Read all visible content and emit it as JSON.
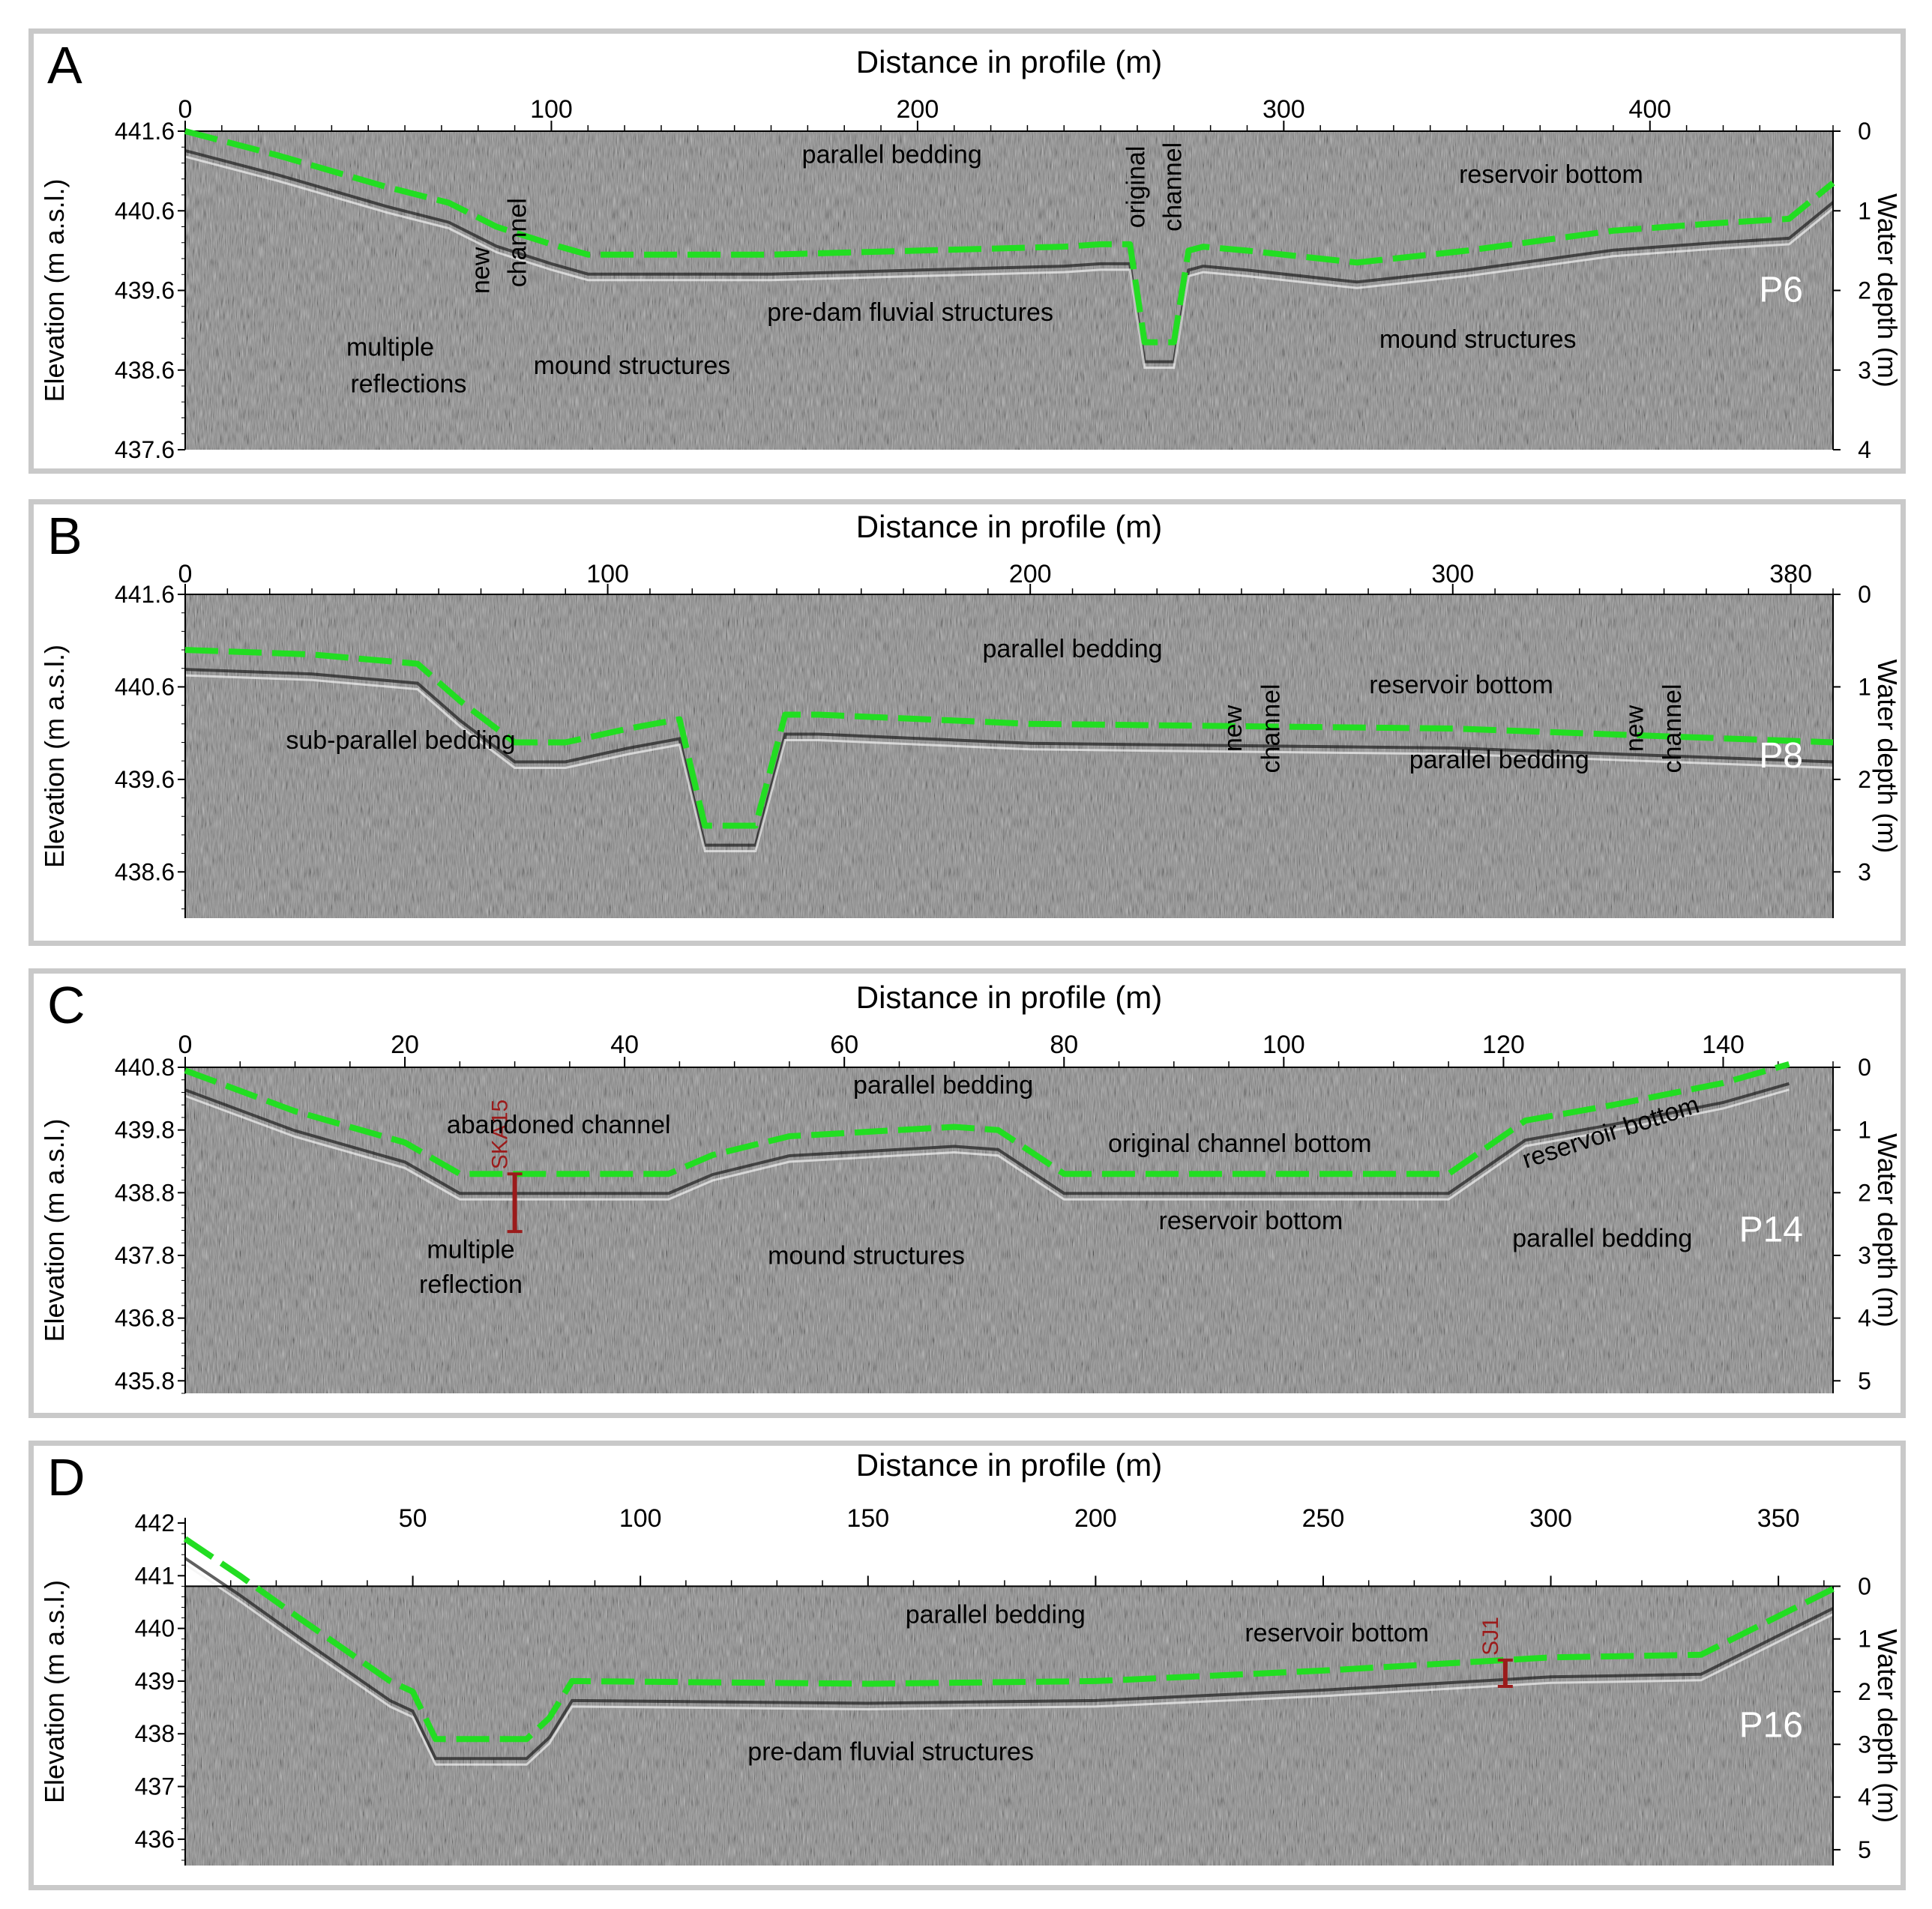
{
  "chart_data": [
    {
      "type": "line",
      "panel_letter": "A",
      "profile_label": "P6",
      "top_axis_title": "Distance in profile (m)",
      "left_axis_title": "Elevation (m a.s.l.)",
      "right_axis_title": "Water depth (m)",
      "xlim": [
        0,
        450
      ],
      "ylim": [
        437.6,
        441.6
      ],
      "x_ticks": [
        0,
        100,
        200,
        300,
        400
      ],
      "y_ticks": [
        "441.6",
        "440.6",
        "439.6",
        "438.6",
        "437.6"
      ],
      "depth_ticks": [
        "0",
        "1",
        "2",
        "3",
        "4"
      ],
      "water_surface": 441.6,
      "grid": false,
      "series": [
        {
          "color": "#22dd22",
          "style": "dashed",
          "x": [
            0,
            25,
            55,
            72,
            85,
            100,
            110,
            130,
            160,
            200,
            240,
            250,
            258,
            262,
            270,
            274,
            278,
            290,
            320,
            350,
            390,
            420,
            438,
            450
          ],
          "y": [
            441.6,
            441.3,
            440.9,
            440.7,
            440.4,
            440.18,
            440.05,
            440.05,
            440.05,
            440.1,
            440.15,
            440.18,
            440.18,
            438.95,
            438.95,
            440.1,
            440.15,
            440.1,
            439.95,
            440.1,
            440.35,
            440.45,
            440.5,
            440.95
          ]
        }
      ],
      "annotations": [
        {
          "text": "parallel bedding",
          "x": 193,
          "y": 441.2
        },
        {
          "text": "original",
          "x": 262,
          "y": 440.9,
          "rotate": true
        },
        {
          "text": "channel",
          "x": 272,
          "y": 440.9,
          "rotate": true
        },
        {
          "text": "reservoir bottom",
          "x": 373,
          "y": 440.95
        },
        {
          "text": "new",
          "x": 83,
          "y": 439.85,
          "rotate": true
        },
        {
          "text": "channel",
          "x": 93,
          "y": 440.2,
          "rotate": true
        },
        {
          "text": "pre-dam fluvial structures",
          "x": 198,
          "y": 439.22
        },
        {
          "text": "mound structures",
          "x": 353,
          "y": 438.88
        },
        {
          "text": "multiple",
          "x": 56,
          "y": 438.78
        },
        {
          "text": "reflections",
          "x": 61,
          "y": 438.32
        },
        {
          "text": "mound structures",
          "x": 122,
          "y": 438.55
        }
      ]
    },
    {
      "type": "line",
      "panel_letter": "B",
      "profile_label": "P8",
      "top_axis_title": "Distance in profile (m)",
      "left_axis_title": "Elevation (m a.s.l.)",
      "right_axis_title": "Water depth (m)",
      "xlim": [
        0,
        390
      ],
      "ylim": [
        438.1,
        441.6
      ],
      "x_ticks": [
        0,
        100,
        200,
        300,
        380
      ],
      "y_ticks": [
        "441.6",
        "440.6",
        "439.6",
        "438.6"
      ],
      "depth_ticks": [
        "0",
        "1",
        "2",
        "3"
      ],
      "water_surface": 441.6,
      "grid": false,
      "series": [
        {
          "color": "#22dd22",
          "style": "dashed",
          "x": [
            0,
            30,
            55,
            65,
            78,
            90,
            105,
            117,
            123,
            135,
            142,
            150,
            200,
            300,
            390
          ],
          "y": [
            441.0,
            440.95,
            440.85,
            440.45,
            440.0,
            440.0,
            440.15,
            440.25,
            439.1,
            439.1,
            440.3,
            440.3,
            440.2,
            440.15,
            440.0
          ]
        }
      ],
      "annotations": [
        {
          "text": "parallel bedding",
          "x": 210,
          "y": 440.92
        },
        {
          "text": "new",
          "x": 250,
          "y": 440.15,
          "rotate": true
        },
        {
          "text": "channel",
          "x": 259,
          "y": 440.15,
          "rotate": true
        },
        {
          "text": "reservoir bottom",
          "x": 302,
          "y": 440.53
        },
        {
          "text": "parallel bedding",
          "x": 311,
          "y": 439.72
        },
        {
          "text": "new",
          "x": 345,
          "y": 440.15,
          "rotate": true
        },
        {
          "text": "channel",
          "x": 354,
          "y": 440.15,
          "rotate": true
        },
        {
          "text": "sub-parallel bedding",
          "x": 51,
          "y": 439.93
        }
      ]
    },
    {
      "type": "line",
      "panel_letter": "C",
      "profile_label": "P14",
      "top_axis_title": "Distance in profile (m)",
      "left_axis_title": "Elevation (m a.s.l.)",
      "right_axis_title": "Water depth (m)",
      "xlim": [
        0,
        150
      ],
      "ylim": [
        435.6,
        440.8
      ],
      "x_ticks": [
        0,
        20,
        40,
        60,
        80,
        100,
        120,
        140
      ],
      "y_ticks": [
        "440.8",
        "439.8",
        "438.8",
        "437.8",
        "436.8",
        "435.8"
      ],
      "depth_ticks": [
        "0",
        "1",
        "2",
        "3",
        "4",
        "5"
      ],
      "water_surface": 440.8,
      "grid": false,
      "series": [
        {
          "color": "#22dd22",
          "style": "dashed",
          "x": [
            0,
            10,
            20,
            25,
            44,
            48,
            55,
            70,
            74,
            80,
            115,
            122,
            130,
            140,
            146
          ],
          "y": [
            440.75,
            440.1,
            439.6,
            439.1,
            439.1,
            439.4,
            439.7,
            439.85,
            439.8,
            439.1,
            439.1,
            439.95,
            440.2,
            440.55,
            440.85
          ]
        }
      ],
      "cores": [
        {
          "name": "SKA15",
          "x": 30,
          "top": 439.1,
          "bottom": 438.18,
          "color": "#9b1b1b"
        }
      ],
      "annotations": [
        {
          "text": "parallel bedding",
          "x": 69,
          "y": 440.38
        },
        {
          "text": "abandoned channel",
          "x": 34,
          "y": 439.75
        },
        {
          "text": "original channel bottom",
          "x": 96,
          "y": 439.45
        },
        {
          "text": "reservoir bottom",
          "x": 130,
          "y": 439.64,
          "rotate_deg": -18
        },
        {
          "text": "reservoir bottom",
          "x": 97,
          "y": 438.22
        },
        {
          "text": "parallel bedding",
          "x": 129,
          "y": 437.94
        },
        {
          "text": "mound structures",
          "x": 62,
          "y": 437.66
        },
        {
          "text": "multiple",
          "x": 26,
          "y": 437.76
        },
        {
          "text": "reflection",
          "x": 26,
          "y": 437.2
        }
      ]
    },
    {
      "type": "line",
      "panel_letter": "D",
      "profile_label": "P16",
      "top_axis_title": "Distance in profile (m)",
      "left_axis_title": "Elevation (m a.s.l.)",
      "right_axis_title": "Water depth (m)",
      "xlim": [
        0,
        362
      ],
      "ylim": [
        435.5,
        442.1
      ],
      "x_ticks": [
        50,
        100,
        150,
        200,
        250,
        300,
        350
      ],
      "y_ticks": [
        "442",
        "441",
        "440",
        "439",
        "438",
        "437",
        "436"
      ],
      "depth_ticks": [
        "0",
        "1",
        "2",
        "3",
        "4",
        "5"
      ],
      "water_surface": 440.8,
      "grid": false,
      "series": [
        {
          "color": "#22dd22",
          "style": "dashed",
          "x": [
            0,
            12,
            25,
            45,
            50,
            55,
            75,
            80,
            85,
            150,
            200,
            250,
            300,
            333,
            362
          ],
          "y": [
            441.7,
            441.0,
            440.2,
            439.0,
            438.8,
            437.9,
            437.9,
            438.3,
            439.0,
            438.95,
            439.0,
            439.2,
            439.45,
            439.5,
            440.75
          ]
        }
      ],
      "cores": [
        {
          "name": "SJ1",
          "x": 290,
          "top": 439.4,
          "bottom": 438.9,
          "color": "#9b1b1b"
        }
      ],
      "annotations": [
        {
          "text": "parallel bedding",
          "x": 178,
          "y": 440.1
        },
        {
          "text": "reservoir bottom",
          "x": 253,
          "y": 439.75
        },
        {
          "text": "pre-dam fluvial structures",
          "x": 155,
          "y": 437.5
        }
      ]
    }
  ]
}
